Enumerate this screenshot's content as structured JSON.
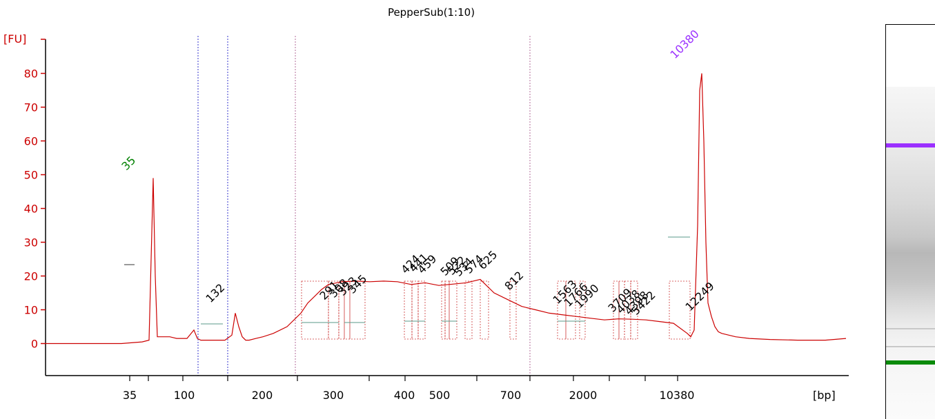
{
  "chart_data": {
    "type": "line",
    "title": "PepperSub(1:10)",
    "ylabel": "[FU]",
    "xlabel": "[bp]",
    "ylim": [
      -10,
      85
    ],
    "yticks": [
      0,
      10,
      20,
      30,
      40,
      50,
      60,
      70,
      80
    ],
    "xtick_labels": [
      "35",
      "100",
      "200",
      "300",
      "400",
      "500",
      "700",
      "2000",
      "10380"
    ],
    "marker_labels": [
      {
        "label": "35",
        "color": "#008000"
      },
      {
        "label": "10380",
        "color": "#9b30ff"
      }
    ],
    "peak_labels": [
      "132",
      "291",
      "308",
      "323",
      "345",
      "424",
      "441",
      "459",
      "509",
      "522",
      "534",
      "574",
      "625",
      "812",
      "1563",
      "1766",
      "1990",
      "3709",
      "4038",
      "4398",
      "5422",
      "12249"
    ],
    "series": [
      {
        "color": "#cc0000",
        "x": [
          30,
          60,
          100,
          140,
          170,
          180,
          183,
          186,
          189,
          192,
          200,
          210,
          220,
          235,
          245,
          250,
          255,
          260,
          270,
          290,
          300,
          305,
          310,
          315,
          320,
          325,
          335,
          345,
          360,
          380,
          400,
          410,
          420,
          430,
          440,
          460,
          480,
          500,
          520,
          540,
          560,
          580,
          600,
          620,
          640,
          660,
          680,
          700,
          720,
          740,
          760,
          780,
          800,
          820,
          840,
          860,
          880,
          900,
          920,
          940,
          960,
          965,
          970,
          975,
          978,
          981,
          984,
          987,
          990,
          995,
          1000,
          1005,
          1010,
          1030,
          1050,
          1080,
          1120,
          1160,
          1190
        ],
        "y": [
          0,
          0,
          0,
          0,
          0.5,
          1,
          25,
          49,
          20,
          2,
          2,
          2,
          1.5,
          1.5,
          4,
          1.5,
          1,
          1,
          1,
          1,
          2.5,
          9,
          5,
          2,
          1,
          1,
          1.5,
          2,
          3,
          5,
          9,
          12,
          14,
          16,
          17.5,
          18.3,
          18.5,
          18.3,
          18.5,
          18.3,
          17.5,
          18,
          17.2,
          17.6,
          18,
          19,
          15,
          13,
          11,
          10,
          9,
          8.5,
          8,
          7.5,
          7,
          7.3,
          7.2,
          7,
          6.5,
          6,
          3,
          2,
          4,
          35,
          75,
          80,
          60,
          30,
          12,
          8,
          5,
          3.5,
          3,
          2,
          1.5,
          1.2,
          1,
          1,
          1.5
        ]
      }
    ]
  }
}
